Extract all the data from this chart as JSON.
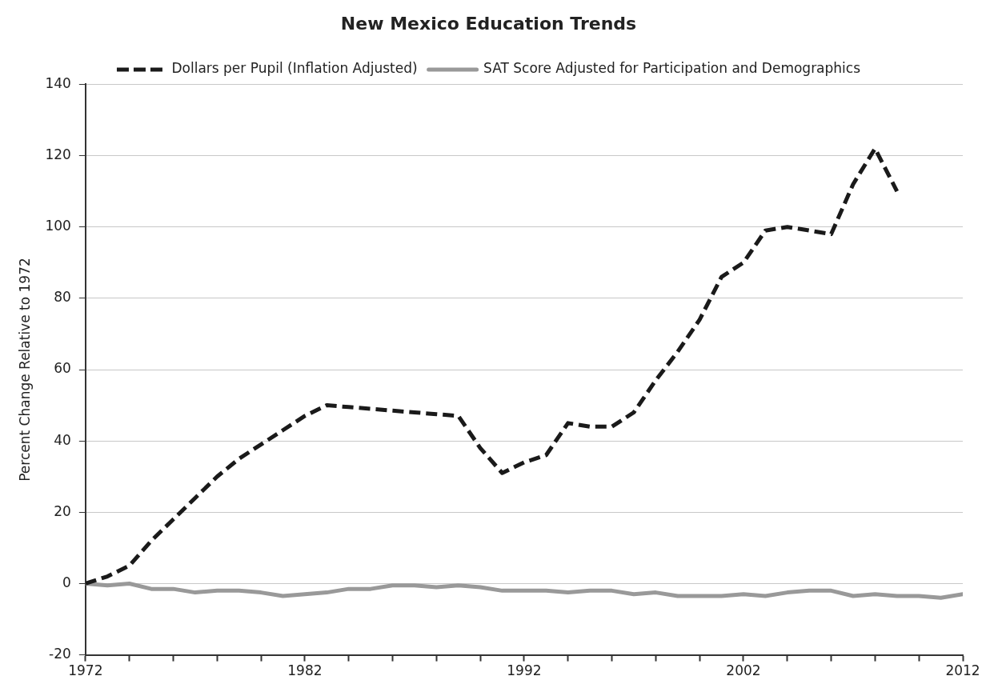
{
  "chart_data": {
    "type": "line",
    "title": "New Mexico Education Trends",
    "ylabel": "Percent Change Relative to 1972",
    "x": [
      1972,
      1973,
      1974,
      1975,
      1976,
      1977,
      1978,
      1979,
      1980,
      1981,
      1982,
      1983,
      1984,
      1985,
      1986,
      1987,
      1988,
      1989,
      1990,
      1991,
      1992,
      1993,
      1994,
      1995,
      1996,
      1997,
      1998,
      1999,
      2000,
      2001,
      2002,
      2003,
      2004,
      2005,
      2006,
      2007,
      2008,
      2009,
      2010,
      2011,
      2012
    ],
    "series": [
      {
        "name": "Dollars per Pupil (Inflation Adjusted)",
        "color": "#1a1a1a",
        "line_style": "dashed",
        "values": [
          0,
          2,
          5,
          12,
          18,
          24,
          30,
          35,
          39,
          43,
          47,
          50,
          49.5,
          49,
          48.5,
          48,
          47.5,
          47,
          38,
          31,
          34,
          36,
          45,
          44,
          44,
          48,
          57,
          65,
          74,
          86,
          90,
          99,
          100,
          99,
          98,
          112,
          122,
          110,
          null,
          null,
          null
        ]
      },
      {
        "name": "SAT Score Adjusted for Participation and Demographics",
        "color": "#999999",
        "line_style": "solid",
        "values": [
          0,
          -0.5,
          0,
          -1.5,
          -1.5,
          -2.5,
          -2,
          -2,
          -2.5,
          -3.5,
          -3,
          -2.5,
          -1.5,
          -1.5,
          -0.5,
          -0.5,
          -1,
          -0.5,
          -1,
          -2,
          -2,
          -2,
          -2.5,
          -2,
          -2,
          -3,
          -2.5,
          -3.5,
          -3.5,
          -3.5,
          -3,
          -3.5,
          -2.5,
          -2,
          -2,
          -3.5,
          -3,
          -3.5,
          -3.5,
          -4,
          -3
        ]
      }
    ],
    "xlim": [
      1972,
      2012
    ],
    "xticks": [
      1972,
      {
        "value": 1974,
        "label": null
      },
      {
        "value": 1976,
        "label": null
      },
      {
        "value": 1978,
        "label": null
      },
      {
        "value": 1980,
        "label": null
      },
      1982,
      {
        "value": 1984,
        "label": null
      },
      {
        "value": 1986,
        "label": null
      },
      {
        "value": 1988,
        "label": null
      },
      {
        "value": 1990,
        "label": null
      },
      1992,
      {
        "value": 1994,
        "label": null
      },
      {
        "value": 1996,
        "label": null
      },
      {
        "value": 1998,
        "label": null
      },
      {
        "value": 2000,
        "label": null
      },
      2002,
      {
        "value": 2004,
        "label": null
      },
      {
        "value": 2006,
        "label": null
      },
      {
        "value": 2008,
        "label": null
      },
      {
        "value": 2010,
        "label": null
      },
      2012
    ],
    "ylim": [
      -20,
      140
    ],
    "yticks": [
      -20,
      0,
      20,
      40,
      60,
      80,
      100,
      120,
      140
    ],
    "grid": "y",
    "legend": "top",
    "marker": "none"
  }
}
